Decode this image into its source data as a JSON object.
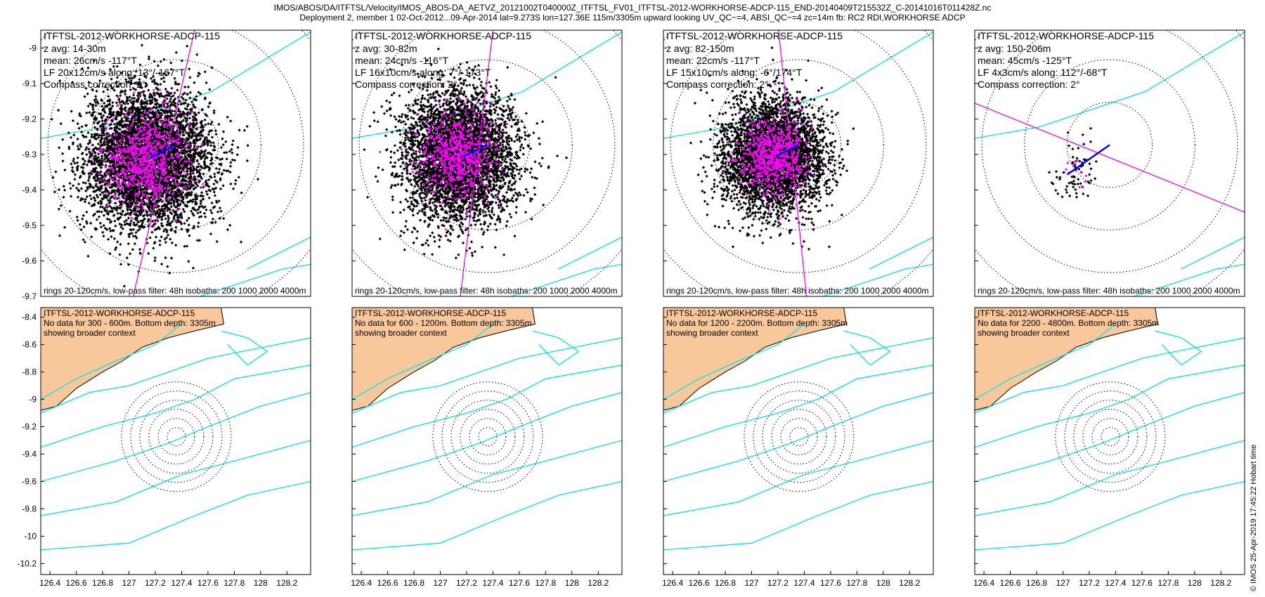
{
  "header": {
    "line1": "IMOS/ABOS/DA/ITFTSL/Velocity/IMOS_ABOS-DA_AETVZ_20121002T040000Z_ITFTSL_FV01_ITFTSL-2012-WORKHORSE-ADCP-115_END-20140409T215532Z_C-20141016T011428Z.nc",
    "line2": "Deployment 2, member 1 02-Oct-2012...09-Apr-2014 lat=9.273S lon=127.36E 115m/3305m upward looking UV_QC~=4, ABSI_QC~=4 zc=14m fb: RC2 RDI,WORKHORSE ADCP"
  },
  "footer": {
    "stamp": "© IMOS 25-Apr-2019 17:45:22 Hobart time"
  },
  "colors": {
    "points": "#000000",
    "lowpass_points": "#ff00ff",
    "mean_vector": "#0000ff",
    "principal_axis": "#ff00ff",
    "isobaths": "#00e5ee",
    "land": "#f8c89a",
    "rings": "#000000"
  },
  "chart_data": [
    {
      "type": "scatter",
      "panel": "top-1",
      "title": "ITFTSL-2012-WORKHORSE-ADCP-115",
      "info": [
        "z avg: 14-30m",
        "mean: 26cm/s -117°T",
        "LF 20x12cm/s along: 13°/-167°T",
        "Compass correction: 2°"
      ],
      "footer": "rings 20-120cm/s, low-pass filter: 48h isobaths: 200 1000 2000 4000m",
      "yticks": [
        -9,
        -9.1,
        -9.2,
        -9.3,
        -9.4,
        -9.5,
        -9.6,
        -9.7
      ],
      "ylim": [
        -9.7,
        -8.95
      ],
      "center": [
        127.36,
        -9.273
      ],
      "cloud": {
        "dx": -0.08,
        "dy": -0.04,
        "sx": 0.16,
        "sy": 0.16,
        "n": 5000,
        "lf_n": 800
      },
      "mean_vector": {
        "speed_cms": 26,
        "direction_degT": -117
      },
      "principal_axis_degT": 13
    },
    {
      "type": "scatter",
      "panel": "top-2",
      "title": "ITFTSL-2012-WORKHORSE-ADCP-115",
      "info": [
        "z avg: 30-82m",
        "mean: 24cm/s -116°T",
        "LF 16x10cm/s along: 7°/-173°T",
        "Compass correction: 2°"
      ],
      "footer": "rings 20-120cm/s, low-pass filter: 48h isobaths: 200 1000 2000 4000m",
      "center": [
        127.36,
        -9.273
      ],
      "cloud": {
        "dx": -0.08,
        "dy": -0.03,
        "sx": 0.14,
        "sy": 0.15,
        "n": 4500,
        "lf_n": 700
      },
      "mean_vector": {
        "speed_cms": 24,
        "direction_degT": -116
      },
      "principal_axis_degT": 7
    },
    {
      "type": "scatter",
      "panel": "top-3",
      "title": "ITFTSL-2012-WORKHORSE-ADCP-115",
      "info": [
        "z avg: 82-150m",
        "mean: 22cm/s -117°T",
        "LF 15x10cm/s along: -6°/174°T",
        "Compass correction: 2°"
      ],
      "footer": "rings 20-120cm/s, low-pass filter: 48h isobaths: 200 1000 2000 4000m",
      "center": [
        127.36,
        -9.273
      ],
      "cloud": {
        "dx": -0.07,
        "dy": -0.03,
        "sx": 0.13,
        "sy": 0.13,
        "n": 4000,
        "lf_n": 700
      },
      "mean_vector": {
        "speed_cms": 22,
        "direction_degT": -117
      },
      "principal_axis_degT": -6
    },
    {
      "type": "scatter",
      "panel": "top-4",
      "title": "ITFTSL-2012-WORKHORSE-ADCP-115",
      "info": [
        "z avg: 150-206m",
        "mean: 45cm/s -125°T",
        "LF 4x3cm/s along: 112°/-68°T",
        "Compass correction: 2°"
      ],
      "footer": "rings 20-120cm/s, low-pass filter: 48h isobaths: 200 1000 2000 4000m",
      "center": [
        127.36,
        -9.273
      ],
      "cloud": {
        "dx": -0.1,
        "dy": -0.08,
        "sx": 0.05,
        "sy": 0.07,
        "n": 70,
        "lf_n": 12
      },
      "mean_vector": {
        "speed_cms": 45,
        "direction_degT": -125
      },
      "principal_axis_degT": 112
    },
    {
      "type": "scatter",
      "panel": "bottom-1",
      "title": "ITFTSL-2012-WORKHORSE-ADCP-115",
      "info": [
        "No data for 300 - 600m. Bottom depth: 3305m",
        "showing broader context"
      ],
      "yticks": [
        -8.4,
        -8.6,
        -8.8,
        -9,
        -9.2,
        -9.4,
        -9.6,
        -9.8,
        -10,
        -10.2
      ],
      "xticks": [
        126.4,
        126.6,
        126.8,
        127,
        127.2,
        127.4,
        127.6,
        127.8,
        128,
        128.2
      ],
      "ylim": [
        -10.28,
        -8.33
      ],
      "xlim": [
        126.33,
        128.38
      ]
    },
    {
      "type": "scatter",
      "panel": "bottom-2",
      "title": "ITFTSL-2012-WORKHORSE-ADCP-115",
      "info": [
        "No data for 600 - 1200m. Bottom depth: 3305m",
        "showing broader context"
      ],
      "xticks": [
        126.4,
        126.6,
        126.8,
        127,
        127.2,
        127.4,
        127.6,
        127.8,
        128,
        128.2
      ]
    },
    {
      "type": "scatter",
      "panel": "bottom-3",
      "title": "ITFTSL-2012-WORKHORSE-ADCP-115",
      "info": [
        "No data for 1200 - 2200m. Bottom depth: 3305m",
        "showing broader context"
      ],
      "xticks": [
        126.4,
        126.6,
        126.8,
        127,
        127.2,
        127.4,
        127.6,
        127.8,
        128,
        128.2
      ]
    },
    {
      "type": "scatter",
      "panel": "bottom-4",
      "title": "ITFTSL-2012-WORKHORSE-ADCP-115",
      "info": [
        "No data for 2200 - 4800m. Bottom depth: 3305m",
        "showing broader context"
      ],
      "xticks": [
        126.4,
        126.6,
        126.8,
        127,
        127.2,
        127.4,
        127.6,
        127.8,
        128,
        128.2
      ]
    }
  ]
}
